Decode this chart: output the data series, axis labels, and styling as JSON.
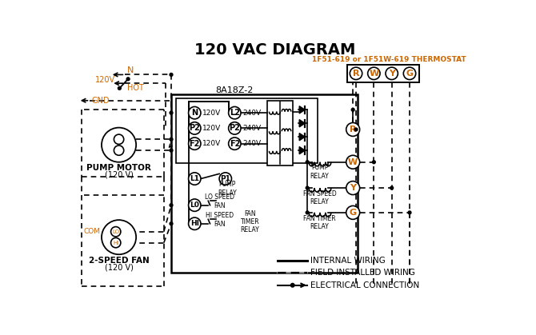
{
  "title": "120 VAC DIAGRAM",
  "title_fontsize": 14,
  "title_color": "#1a1a1a",
  "background_color": "#ffffff",
  "thermostat_label": "1F51-619 or 1F51W-619 THERMOSTAT",
  "thermostat_label_color": "#cc6600",
  "thermostat_terminals": [
    "R",
    "W",
    "Y",
    "G"
  ],
  "control_board_label": "8A18Z-2",
  "left_terminals_120V": [
    "N",
    "P2",
    "F2"
  ],
  "right_terminals_240V": [
    "L2",
    "P2",
    "F2"
  ],
  "left_terminals_labels": [
    "120V",
    "120V",
    "120V"
  ],
  "right_terminals_labels": [
    "240V",
    "240V",
    "240V"
  ],
  "legend_items": [
    "INTERNAL WIRING",
    "FIELD INSTALLED WIRING",
    "ELECTRICAL CONNECTION"
  ],
  "orange_color": "#cc6600",
  "black_color": "#000000"
}
